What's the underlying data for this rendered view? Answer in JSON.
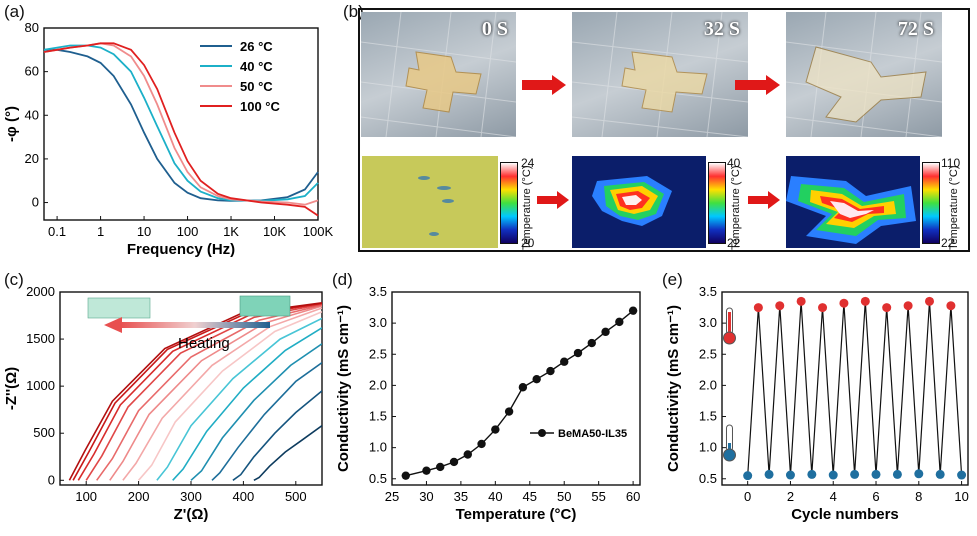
{
  "panels": {
    "a": {
      "label": "(a)",
      "ylabel": "-φ (°)",
      "xlabel": "Frequency (Hz)",
      "yticks": [
        "0",
        "20",
        "40",
        "60",
        "80"
      ],
      "xticks": [
        "0.1",
        "1",
        "10",
        "100",
        "1K",
        "10K",
        "100K"
      ]
    },
    "b": {
      "label": "(b)",
      "times": [
        "0 S",
        "32 S",
        "72 S"
      ],
      "colorbars": [
        {
          "max": "24",
          "min": "20",
          "label": "Temperature (°C)"
        },
        {
          "max": "40",
          "min": "22",
          "label": "Temperature (°C)"
        },
        {
          "max": "110",
          "min": "22",
          "label": "Temperature (°C)"
        }
      ]
    },
    "c": {
      "label": "(c)",
      "ylabel": "-Z''(Ω)",
      "xlabel": "Z'(Ω)",
      "yticks": [
        "0",
        "500",
        "1000",
        "1500",
        "2000"
      ],
      "xticks": [
        "100",
        "200",
        "300",
        "400",
        "500"
      ],
      "annotation": "Heating"
    },
    "d": {
      "label": "(d)",
      "ylabel": "Conductivity (mS cm⁻¹)",
      "xlabel": "Temperature (°C)",
      "yticks": [
        "0.5",
        "1.0",
        "1.5",
        "2.0",
        "2.5",
        "3.0",
        "3.5"
      ],
      "xticks": [
        "25",
        "30",
        "35",
        "40",
        "45",
        "50",
        "55",
        "60"
      ]
    },
    "e": {
      "label": "(e)",
      "ylabel": "Conductivity (mS cm⁻¹)",
      "xlabel": "Cycle numbers",
      "yticks": [
        "0.5",
        "1.0",
        "1.5",
        "2.0",
        "2.5",
        "3.0",
        "3.5"
      ],
      "xticks": [
        "0",
        "2",
        "4",
        "6",
        "8",
        "10"
      ]
    }
  },
  "colors": {
    "c26": "#1f5f8f",
    "c40": "#1cb0c8",
    "c50": "#f08c8c",
    "c100": "#e02020",
    "red": "#e03030",
    "blue": "#1f6f9f"
  },
  "chart_data": [
    {
      "type": "line",
      "panel": "a",
      "xlabel": "Frequency (Hz)",
      "ylabel": "-φ (°)",
      "xscale": "log",
      "xlim": [
        0.05,
        100000
      ],
      "ylim": [
        -8,
        80
      ],
      "series": [
        {
          "name": "26 °C",
          "x": [
            0.05,
            0.1,
            0.2,
            0.5,
            1,
            2,
            5,
            10,
            20,
            50,
            100,
            200,
            500,
            1000,
            5000,
            20000,
            50000,
            100000
          ],
          "y": [
            70,
            70,
            69,
            67,
            64,
            58,
            45,
            32,
            20,
            9,
            4.5,
            2,
            1,
            0.8,
            1,
            2.5,
            6,
            14
          ]
        },
        {
          "name": "40 °C",
          "x": [
            0.05,
            0.1,
            0.2,
            0.5,
            1,
            2,
            5,
            10,
            20,
            50,
            100,
            200,
            500,
            1000,
            5000,
            20000,
            50000,
            100000
          ],
          "y": [
            70,
            71,
            72,
            72,
            71,
            68,
            60,
            48,
            35,
            18,
            10,
            5,
            2,
            1,
            0.8,
            1.5,
            3,
            9
          ]
        },
        {
          "name": "50 °C",
          "x": [
            0.05,
            0.1,
            0.2,
            0.5,
            1,
            2,
            5,
            10,
            20,
            50,
            100,
            200,
            500,
            1000,
            5000,
            20000,
            50000,
            100000
          ],
          "y": [
            69,
            70,
            71,
            72,
            73,
            72,
            67,
            58,
            45,
            25,
            14,
            7,
            3,
            1.5,
            0.5,
            0,
            -1,
            1
          ]
        },
        {
          "name": "100 °C",
          "x": [
            0.05,
            0.1,
            0.2,
            0.5,
            1,
            2,
            5,
            10,
            20,
            50,
            100,
            200,
            500,
            1000,
            5000,
            20000,
            50000,
            100000
          ],
          "y": [
            69,
            70,
            71,
            72,
            73,
            73,
            70,
            63,
            52,
            32,
            19,
            10,
            4,
            2,
            0,
            -1,
            -2,
            -6
          ]
        }
      ],
      "legend": "top-right"
    },
    {
      "type": "line",
      "panel": "c",
      "xlabel": "Z'(Ω)",
      "ylabel": "-Z''(Ω)",
      "xlim": [
        50,
        550
      ],
      "ylim": [
        -50,
        2000
      ],
      "series": [
        {
          "x": [
            420,
            430,
            450,
            480,
            510,
            550
          ],
          "y": [
            0,
            30,
            150,
            300,
            420,
            580
          ]
        },
        {
          "x": [
            380,
            395,
            420,
            460,
            500,
            550
          ],
          "y": [
            0,
            60,
            250,
            500,
            720,
            950
          ]
        },
        {
          "x": [
            340,
            355,
            390,
            440,
            500,
            550
          ],
          "y": [
            0,
            80,
            350,
            700,
            1050,
            1250
          ]
        },
        {
          "x": [
            300,
            320,
            360,
            420,
            490,
            550
          ],
          "y": [
            0,
            100,
            450,
            850,
            1220,
            1450
          ]
        },
        {
          "x": [
            265,
            285,
            330,
            400,
            480,
            550
          ],
          "y": [
            0,
            120,
            520,
            980,
            1380,
            1620
          ]
        },
        {
          "x": [
            235,
            255,
            300,
            380,
            470,
            550
          ],
          "y": [
            0,
            140,
            580,
            1080,
            1500,
            1720
          ]
        },
        {
          "x": [
            200,
            225,
            270,
            360,
            460,
            550
          ],
          "y": [
            0,
            160,
            620,
            1160,
            1580,
            1790
          ]
        },
        {
          "x": [
            170,
            195,
            245,
            340,
            450,
            550
          ],
          "y": [
            0,
            180,
            660,
            1220,
            1630,
            1830
          ]
        },
        {
          "x": [
            145,
            170,
            220,
            320,
            440,
            550
          ],
          "y": [
            0,
            200,
            700,
            1270,
            1670,
            1850
          ]
        },
        {
          "x": [
            120,
            150,
            200,
            300,
            430,
            550
          ],
          "y": [
            0,
            230,
            740,
            1310,
            1700,
            1860
          ]
        },
        {
          "x": [
            100,
            130,
            180,
            280,
            420,
            550
          ],
          "y": [
            0,
            260,
            780,
            1350,
            1730,
            1870
          ]
        },
        {
          "x": [
            85,
            115,
            165,
            265,
            410,
            550
          ],
          "y": [
            0,
            280,
            800,
            1370,
            1750,
            1880
          ]
        },
        {
          "x": [
            75,
            105,
            155,
            255,
            400,
            550
          ],
          "y": [
            0,
            300,
            820,
            1390,
            1760,
            1880
          ]
        },
        {
          "x": [
            68,
            98,
            150,
            250,
            395,
            550
          ],
          "y": [
            0,
            320,
            840,
            1400,
            1770,
            1885
          ]
        }
      ]
    },
    {
      "type": "line",
      "panel": "d",
      "xlabel": "Temperature (°C)",
      "ylabel": "Conductivity (mS cm⁻¹)",
      "xlim": [
        25,
        61
      ],
      "ylim": [
        0.4,
        3.5
      ],
      "series": [
        {
          "name": "BeMA50-IL35",
          "x": [
            27,
            30,
            32,
            34,
            36,
            38,
            40,
            42,
            44,
            46,
            48,
            50,
            52,
            54,
            56,
            58,
            60
          ],
          "y": [
            0.55,
            0.63,
            0.69,
            0.77,
            0.89,
            1.06,
            1.29,
            1.58,
            1.97,
            2.1,
            2.23,
            2.38,
            2.52,
            2.68,
            2.86,
            3.02,
            3.2
          ]
        }
      ],
      "legend": "center-right"
    },
    {
      "type": "line",
      "panel": "e",
      "xlabel": "Cycle numbers",
      "ylabel": "Conductivity (mS cm⁻¹)",
      "xlim": [
        -1.2,
        10.3
      ],
      "ylim": [
        0.4,
        3.5
      ],
      "series": [
        {
          "x": [
            0,
            0.5,
            1,
            1.5,
            2,
            2.5,
            3,
            3.5,
            4,
            4.5,
            5,
            5.5,
            6,
            6.5,
            7,
            7.5,
            8,
            8.5,
            9,
            9.5,
            10
          ],
          "y": [
            0.55,
            3.25,
            0.57,
            3.28,
            0.56,
            3.35,
            0.57,
            3.25,
            0.56,
            3.32,
            0.57,
            3.35,
            0.57,
            3.25,
            0.57,
            3.28,
            0.58,
            3.35,
            0.57,
            3.28,
            0.56
          ]
        }
      ]
    }
  ]
}
